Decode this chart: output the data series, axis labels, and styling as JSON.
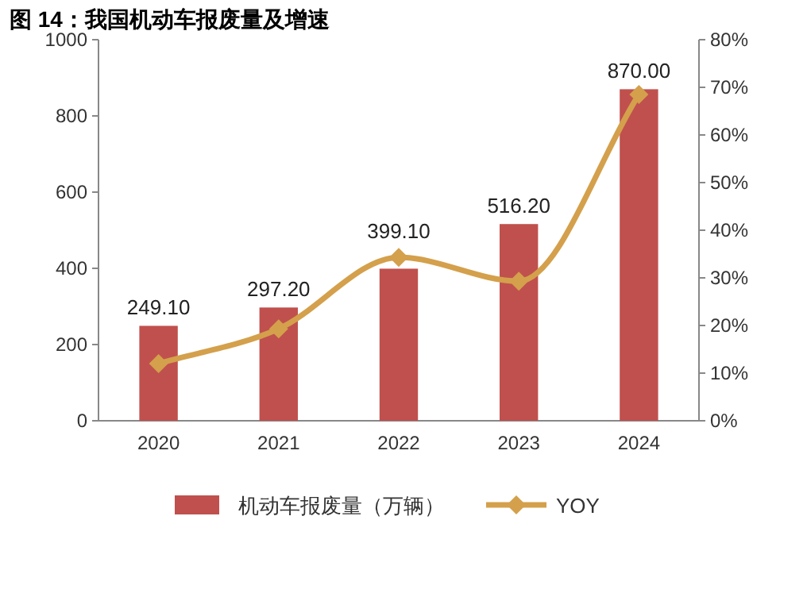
{
  "chart_data": {
    "type": "bar",
    "title": "图 14：我国机动车报废量及增速",
    "categories": [
      "2020",
      "2021",
      "2022",
      "2023",
      "2024"
    ],
    "series": [
      {
        "name": "机动车报废量（万辆）",
        "color": "#c0504d",
        "values": [
          249.1,
          297.2,
          399.1,
          516.2,
          870.0
        ],
        "value_labels": [
          "249.10",
          "297.20",
          "399.10",
          "516.20",
          "870.00"
        ]
      },
      {
        "name": "YOY",
        "type": "line",
        "axis": "y2",
        "color": "#d4a04c",
        "marker": "diamond",
        "values": [
          12,
          19.3,
          34.3,
          29.3,
          68.5
        ]
      }
    ],
    "ylim": [
      0,
      1000
    ],
    "yticks": [
      0,
      200,
      400,
      600,
      800,
      1000
    ],
    "y2lim": [
      0,
      80
    ],
    "y2ticks": [
      {
        "value": 0,
        "label": "0%"
      },
      {
        "value": 10,
        "label": "10%"
      },
      {
        "value": 20,
        "label": "20%"
      },
      {
        "value": 30,
        "label": "30%"
      },
      {
        "value": 40,
        "label": "40%"
      },
      {
        "value": 50,
        "label": "50%"
      },
      {
        "value": 60,
        "label": "60%"
      },
      {
        "value": 70,
        "label": "70%"
      },
      {
        "value": 80,
        "label": "80%"
      }
    ],
    "legend": "bottom"
  }
}
